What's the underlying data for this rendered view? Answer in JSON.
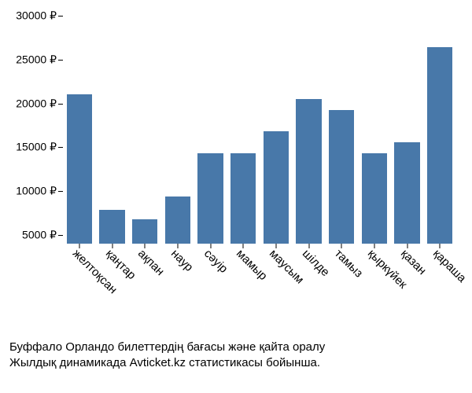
{
  "chart": {
    "type": "bar",
    "background_color": "#ffffff",
    "bar_color": "#4878a9",
    "bar_width": 0.78,
    "font_family": "Arial",
    "tick_fontsize": 14,
    "label_fontsize": 15,
    "caption_fontsize": 15,
    "text_color": "#000000",
    "y_axis": {
      "min": 4000,
      "max": 30000,
      "ticks": [
        5000,
        10000,
        15000,
        20000,
        25000,
        30000
      ],
      "tick_labels": [
        "5000 ₽",
        "10000 ₽",
        "15000 ₽",
        "20000 ₽",
        "25000 ₽",
        "30000 ₽"
      ]
    },
    "x_label_rotation": 45,
    "categories": [
      "желтоқсан",
      "қаңтар",
      "ақпан",
      "наур",
      "сәуір",
      "мамыр",
      "маусым",
      "шілде",
      "тамыз",
      "қыркүйек",
      "қазан",
      "қараша"
    ],
    "values": [
      21000,
      7900,
      6800,
      9400,
      14300,
      14300,
      16800,
      20500,
      19200,
      14300,
      15600,
      26400
    ],
    "caption_line1": "Буффало Орландо билеттердің бағасы және қайта оралу",
    "caption_line2": "Жылдық динамикада Avticket.kz статистикасы бойынша."
  }
}
